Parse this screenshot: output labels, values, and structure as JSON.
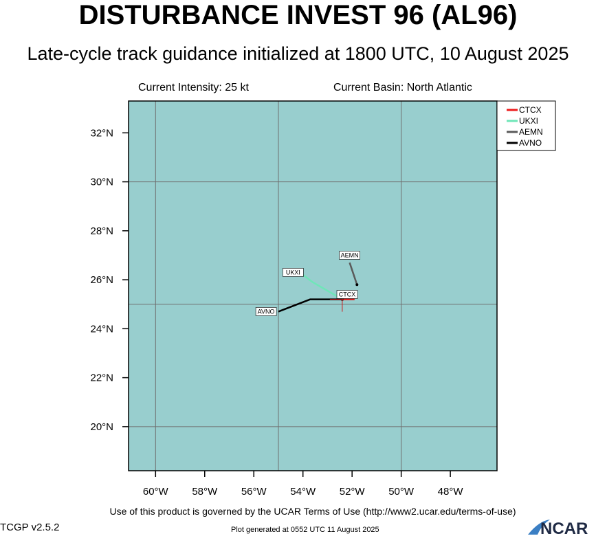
{
  "title": "DISTURBANCE INVEST 96 (AL96)",
  "subtitle": "Late-cycle track guidance initialized at 1800 UTC, 10 August 2025",
  "info": {
    "current_intensity": "Current Intensity: 25 kt",
    "current_basin": "Current Basin: North Atlantic"
  },
  "map": {
    "lon_range": [
      -61.1,
      -46.1
    ],
    "lat_range": [
      18.2,
      33.3
    ],
    "ocean_color": "#98cece",
    "grid_color": "#6f6f6f",
    "grid_lons": [
      -60,
      -55,
      -50
    ],
    "grid_lats": [
      20,
      25,
      30
    ],
    "lon_ticks": [
      {
        "value": -60,
        "label": "60°W"
      },
      {
        "value": -58,
        "label": "58°W"
      },
      {
        "value": -56,
        "label": "56°W"
      },
      {
        "value": -54,
        "label": "54°W"
      },
      {
        "value": -52,
        "label": "52°W"
      },
      {
        "value": -50,
        "label": "50°W"
      },
      {
        "value": -48,
        "label": "48°W"
      }
    ],
    "lat_ticks": [
      {
        "value": 32,
        "label": "32°N"
      },
      {
        "value": 30,
        "label": "30°N"
      },
      {
        "value": 28,
        "label": "28°N"
      },
      {
        "value": 26,
        "label": "26°N"
      },
      {
        "value": 24,
        "label": "24°N"
      },
      {
        "value": 22,
        "label": "22°N"
      },
      {
        "value": 20,
        "label": "20°N"
      }
    ],
    "current_position": {
      "lon": -52.4,
      "lat": 25.2
    }
  },
  "tracks": [
    {
      "name": "CTCX",
      "color": "#ee1c1c",
      "points": [
        [
          -52.4,
          25.2
        ],
        [
          -51.9,
          25.2
        ]
      ]
    },
    {
      "name": "UKXI",
      "color": "#6fe6b8",
      "points": [
        [
          -52.4,
          25.2
        ],
        [
          -53.6,
          25.9
        ],
        [
          -54.0,
          26.2
        ]
      ]
    },
    {
      "name": "AEMN",
      "color": "#5a5a5a",
      "points": [
        [
          -51.8,
          25.8
        ],
        [
          -52.1,
          26.7
        ]
      ]
    },
    {
      "name": "AVNO",
      "color": "#000000",
      "points": [
        [
          -52.4,
          25.2
        ],
        [
          -53.7,
          25.2
        ],
        [
          -55.0,
          24.7
        ]
      ]
    }
  ],
  "track_labels": [
    {
      "name": "CTCX",
      "lon": -52.2,
      "lat": 25.4
    },
    {
      "name": "UKXI",
      "lon": -54.4,
      "lat": 26.3
    },
    {
      "name": "AEMN",
      "lon": -52.1,
      "lat": 27.0
    },
    {
      "name": "AVNO",
      "lon": -55.5,
      "lat": 24.7
    }
  ],
  "legend": [
    "CTCX",
    "UKXI",
    "AEMN",
    "AVNO"
  ],
  "footer": {
    "terms": "Use of this product is governed by the UCAR Terms of Use (http://www2.ucar.edu/terms-of-use)",
    "version": "TCGP v2.5.2",
    "generated": "Plot generated at 0552 UTC   11 August 2025",
    "logo_text": "NCAR"
  }
}
